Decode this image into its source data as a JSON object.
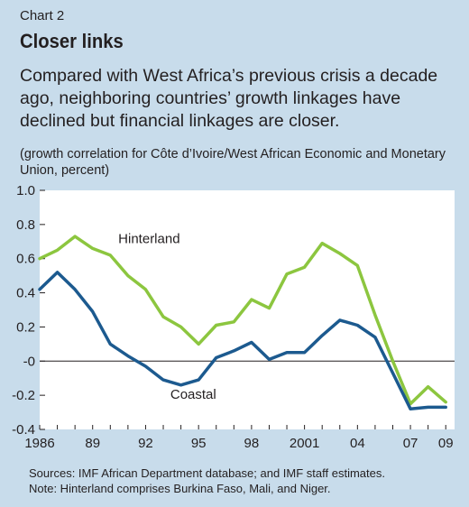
{
  "header": {
    "chart_number": "Chart 2",
    "title": "Closer links",
    "subtitle": "Compared with West Africa’s previous crisis a decade ago, neighboring countries’ growth linkages have declined but financial linkages are closer.",
    "units": "(growth correlation for Côte d’Ivoire/West African Economic and Monetary Union, percent)"
  },
  "chart_data": {
    "type": "line",
    "title": "Closer links",
    "xlabel": "",
    "ylabel": "(growth correlation for Côte d’Ivoire/West African Economic and Monetary Union, percent)",
    "ylim": [
      -0.4,
      1.0
    ],
    "xlim": [
      1986,
      2009.5
    ],
    "yticks": [
      1.0,
      0.8,
      0.6,
      0.4,
      0.2,
      0.0,
      -0.2,
      -0.4
    ],
    "ytick_labels": [
      "1.0",
      "0.8",
      "0.6",
      "0.4",
      "0.2",
      "-0",
      "-0.2",
      "-0.4"
    ],
    "xticks": [
      1986,
      1989,
      1992,
      1995,
      1998,
      2001,
      2004,
      2007,
      2009
    ],
    "xtick_labels": [
      "1986",
      "89",
      "92",
      "95",
      "98",
      "2001",
      "04",
      "07",
      "09"
    ],
    "grid": false,
    "series": [
      {
        "name": "Hinterland",
        "color": "#8cc63f",
        "x": [
          1986,
          1987,
          1988,
          1989,
          1990,
          1991,
          1992,
          1993,
          1994,
          1995,
          1996,
          1997,
          1998,
          1999,
          2000,
          2001,
          2002,
          2003,
          2004,
          2005,
          2006,
          2007,
          2008,
          2009
        ],
        "values": [
          0.6,
          0.65,
          0.73,
          0.66,
          0.62,
          0.5,
          0.42,
          0.26,
          0.2,
          0.1,
          0.21,
          0.23,
          0.36,
          0.31,
          0.51,
          0.55,
          0.69,
          0.63,
          0.56,
          0.27,
          0.0,
          -0.25,
          -0.15,
          -0.24
        ]
      },
      {
        "name": "Coastal",
        "color": "#1c5a8f",
        "x": [
          1986,
          1987,
          1988,
          1989,
          1990,
          1991,
          1992,
          1993,
          1994,
          1995,
          1996,
          1997,
          1998,
          1999,
          2000,
          2001,
          2002,
          2003,
          2004,
          2005,
          2006,
          2007,
          2008,
          2009
        ],
        "values": [
          0.42,
          0.52,
          0.42,
          0.29,
          0.1,
          0.03,
          -0.03,
          -0.11,
          -0.14,
          -0.11,
          0.02,
          0.06,
          0.11,
          0.01,
          0.05,
          0.05,
          0.15,
          0.24,
          0.21,
          0.14,
          -0.07,
          -0.28,
          -0.27,
          -0.27
        ]
      }
    ]
  },
  "footer": {
    "sources": "Sources: IMF African Department database; and IMF staff estimates.",
    "note": "Note: Hinterland comprises Burkina Faso, Mali, and Niger."
  }
}
